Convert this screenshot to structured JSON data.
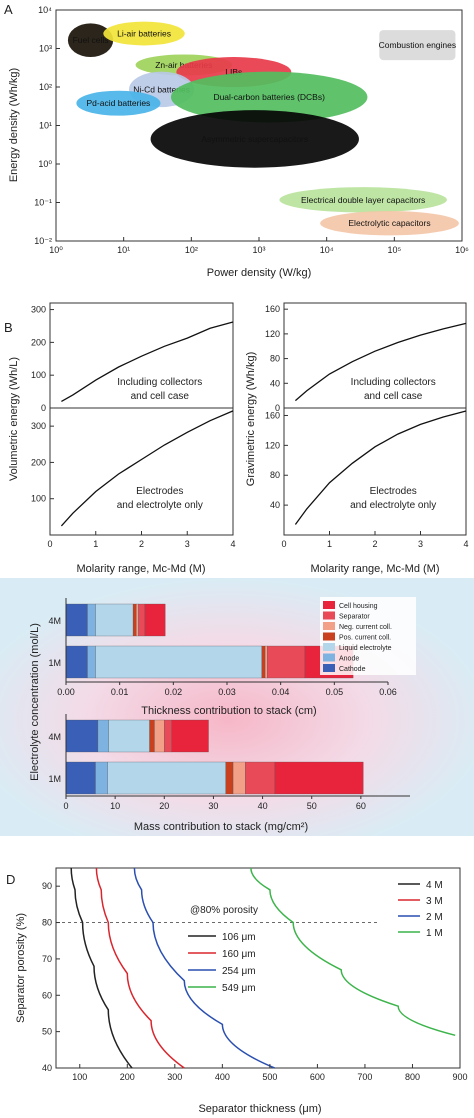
{
  "chart_data": [
    {
      "panel": "A",
      "type": "scatter",
      "xlabel": "Power density (W/kg)",
      "ylabel": "Energy density (Wh/kg)",
      "xscale": "log",
      "yscale": "log",
      "xlim": [
        1,
        1000000
      ],
      "ylim": [
        0.01,
        10000
      ],
      "x_ticks": [
        "10⁰",
        "10¹",
        "10²",
        "10³",
        "10⁴",
        "10⁵",
        "10⁶"
      ],
      "y_ticks": [
        "10⁻²",
        "10⁻¹",
        "10⁰",
        "10¹",
        "10²",
        "10³",
        "10⁴"
      ],
      "regions": [
        {
          "label": "Fuel cells",
          "x": [
            1.5,
            7
          ],
          "y": [
            600,
            4500
          ],
          "color": "#1a1208"
        },
        {
          "label": "Li-air batteries",
          "x": [
            5,
            80
          ],
          "y": [
            1200,
            5000
          ],
          "color": "#f2e43a"
        },
        {
          "label": "Zn-air batteries",
          "x": [
            15,
            400
          ],
          "y": [
            200,
            700
          ],
          "color": "#9ed35a"
        },
        {
          "label": "LIBs",
          "x": [
            60,
            3000
          ],
          "y": [
            100,
            600
          ],
          "color": "#e83a4a"
        },
        {
          "label": "Ni-Cd batteries",
          "x": [
            12,
            110
          ],
          "y": [
            30,
            250
          ],
          "color": "#b9c9e6"
        },
        {
          "label": "Pd-acid batteries",
          "x": [
            2,
            35
          ],
          "y": [
            18,
            80
          ],
          "color": "#4ab4e8"
        },
        {
          "label": "Dual-carbon batteries (DCBs)",
          "x": [
            50,
            40000
          ],
          "y": [
            12,
            250
          ],
          "color": "#52be5e"
        },
        {
          "label": "Asymmetric supercapacitors",
          "x": [
            25,
            30000
          ],
          "y": [
            0.8,
            25
          ],
          "color": "#050505"
        },
        {
          "label": "Electrical double layer capacitors",
          "x": [
            2000,
            600000
          ],
          "y": [
            0.055,
            0.25
          ],
          "color": "#b9e39c"
        },
        {
          "label": "Electrolytic capacitors",
          "x": [
            8000,
            900000
          ],
          "y": [
            0.014,
            0.06
          ],
          "color": "#f4c7a8"
        },
        {
          "label": "Combustion engines",
          "x": [
            60000,
            800000
          ],
          "y": [
            500,
            3000
          ],
          "color": "#dcdcdc"
        }
      ]
    },
    {
      "panel": "B-left",
      "type": "line",
      "xlabel": "Molarity range, Mc-Md (M)",
      "ylabel": "Volumetric energy (Wh/L)",
      "xlim": [
        0,
        4
      ],
      "top": {
        "label": "Including collectors and cell case",
        "ylim": [
          0,
          320
        ],
        "y_ticks": [
          0,
          100,
          200,
          300
        ],
        "x": [
          0.25,
          0.5,
          1,
          1.5,
          2,
          2.5,
          3,
          3.5,
          4
        ],
        "y": [
          20,
          40,
          85,
          125,
          158,
          188,
          213,
          243,
          262
        ]
      },
      "bottom": {
        "label": "Electrodes and electrolyte only",
        "ylim": [
          0,
          350
        ],
        "y_ticks": [
          0,
          100,
          200,
          300
        ],
        "x": [
          0.25,
          0.5,
          1,
          1.5,
          2,
          2.5,
          3,
          3.5,
          4
        ],
        "y": [
          25,
          60,
          120,
          168,
          208,
          248,
          283,
          315,
          342
        ]
      },
      "x_ticks": [
        0,
        1,
        2,
        3,
        4
      ]
    },
    {
      "panel": "B-right",
      "type": "line",
      "xlabel": "Molarity range, Mc-Md (M)",
      "ylabel": "Gravimetric energy (Wh/kg)",
      "xlim": [
        0,
        4
      ],
      "top": {
        "label": "Including collectors and cell case",
        "ylim": [
          0,
          170
        ],
        "y_ticks": [
          0,
          40,
          80,
          120,
          160
        ],
        "x": [
          0.25,
          0.5,
          1,
          1.5,
          2,
          2.5,
          3,
          3.5,
          4
        ],
        "y": [
          12,
          28,
          55,
          75,
          92,
          106,
          118,
          128,
          137
        ]
      },
      "bottom": {
        "label": "Electrodes and electrolyte only",
        "ylim": [
          0,
          170
        ],
        "y_ticks": [
          0,
          40,
          80,
          120,
          160
        ],
        "x": [
          0.25,
          0.5,
          1,
          1.5,
          2,
          2.5,
          3,
          3.5,
          4
        ],
        "y": [
          14,
          35,
          70,
          96,
          118,
          135,
          148,
          158,
          166
        ]
      },
      "x_ticks": [
        0,
        1,
        2,
        3,
        4
      ]
    },
    {
      "panel": "C",
      "type": "bar",
      "ylabel": "Electrolyte concentration (mol/L)",
      "legend": [
        "Cell housing",
        "Separator",
        "Neg. current coll.",
        "Pos. current coll.",
        "Liquid electrolyte",
        "Anode",
        "Cathode"
      ],
      "colors": {
        "Cell housing": "#e8243c",
        "Separator": "#e84a58",
        "Neg. current coll.": "#f3a088",
        "Pos. current coll.": "#c9401e",
        "Liquid electrolyte": "#b3d6ea",
        "Anode": "#7eb2e0",
        "Cathode": "#3a5fb6"
      },
      "thickness": {
        "xlabel": "Thickness contribution to stack (cm)",
        "xlim": [
          0,
          0.06
        ],
        "x_ticks": [
          "0.00",
          "0.01",
          "0.02",
          "0.03",
          "0.04",
          "0.05",
          "0.06"
        ],
        "categories": [
          "4M",
          "1M"
        ],
        "series": [
          {
            "name": "Cathode",
            "values": [
              0.004,
              0.004
            ]
          },
          {
            "name": "Anode",
            "values": [
              0.0015,
              0.0015
            ]
          },
          {
            "name": "Liquid electrolyte",
            "values": [
              0.007,
              0.031
            ]
          },
          {
            "name": "Pos. current coll.",
            "values": [
              0.0006,
              0.0006
            ]
          },
          {
            "name": "Neg. current coll.",
            "values": [
              0.0004,
              0.0004
            ]
          },
          {
            "name": "Separator",
            "values": [
              0.0012,
              0.007
            ]
          },
          {
            "name": "Cell housing",
            "values": [
              0.0038,
              0.009
            ]
          }
        ]
      },
      "mass": {
        "xlabel": "Mass contribution to stack (mg/cm²)",
        "xlim": [
          0,
          70
        ],
        "x_ticks": [
          "0",
          "10",
          "20",
          "30",
          "40",
          "50",
          "60"
        ],
        "categories": [
          "4M",
          "1M"
        ],
        "series": [
          {
            "name": "Cathode",
            "values": [
              6.5,
              6.0
            ]
          },
          {
            "name": "Anode",
            "values": [
              2.2,
              2.5
            ]
          },
          {
            "name": "Liquid electrolyte",
            "values": [
              8.3,
              24.0
            ]
          },
          {
            "name": "Pos. current coll.",
            "values": [
              1.0,
              1.5
            ]
          },
          {
            "name": "Neg. current coll.",
            "values": [
              2.0,
              2.5
            ]
          },
          {
            "name": "Separator",
            "values": [
              1.5,
              6.0
            ]
          },
          {
            "name": "Cell housing",
            "values": [
              7.5,
              18.0
            ]
          }
        ]
      }
    },
    {
      "panel": "D",
      "type": "line",
      "xlabel": "Separator thickness (μm)",
      "ylabel": "Separator porosity (%)",
      "xlim": [
        50,
        900
      ],
      "ylim": [
        40,
        95
      ],
      "x_ticks": [
        100,
        200,
        300,
        400,
        500,
        600,
        700,
        800,
        900
      ],
      "y_ticks": [
        40,
        50,
        60,
        70,
        80,
        90
      ],
      "series": [
        {
          "name": "4 M",
          "color": "#222222",
          "x": [
            82,
            90,
            106,
            130,
            160,
            210
          ],
          "y": [
            95,
            89,
            80,
            68,
            56,
            40
          ]
        },
        {
          "name": "3 M",
          "color": "#d9262e",
          "x": [
            135,
            145,
            160,
            200,
            250,
            320
          ],
          "y": [
            95,
            89,
            80,
            66,
            53,
            40
          ]
        },
        {
          "name": "2 M",
          "color": "#2a4fb0",
          "x": [
            215,
            230,
            254,
            320,
            400,
            510
          ],
          "y": [
            95,
            89,
            80,
            64,
            52,
            40
          ]
        },
        {
          "name": "1 M",
          "color": "#3cb44b",
          "x": [
            460,
            500,
            549,
            650,
            770,
            890
          ],
          "y": [
            95,
            89,
            80,
            67,
            57,
            49
          ]
        }
      ],
      "reference": {
        "label": "@80% porosity",
        "y": 80
      },
      "porosity_values": [
        {
          "label": "106 μm",
          "color": "#222222"
        },
        {
          "label": "160 μm",
          "color": "#d9262e"
        },
        {
          "label": "254 μm",
          "color": "#2a4fb0"
        },
        {
          "label": "549 μm",
          "color": "#3cb44b"
        }
      ]
    }
  ],
  "panels": {
    "a": "A",
    "b": "B",
    "c": "C",
    "d": "D"
  }
}
